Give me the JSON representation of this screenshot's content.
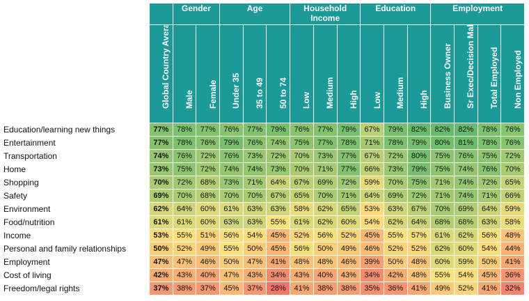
{
  "chart_data": {
    "type": "table",
    "column_groups": [
      {
        "name": "Gender",
        "span": 2
      },
      {
        "name": "Age",
        "span": 3
      },
      {
        "name": "Household Income",
        "span": 3
      },
      {
        "name": "Education",
        "span": 3
      },
      {
        "name": "Employment",
        "span": 4
      }
    ],
    "columns": [
      "Global Country Average",
      "Male",
      "Female",
      "Under 35",
      "35 to 49",
      "50 to 74",
      "Low",
      "Medium",
      "High",
      "Low",
      "Medium",
      "High",
      "Business Owner",
      "Sr Exec/Decision Maker",
      "Total Employed",
      "Non Employed"
    ],
    "rows": [
      {
        "label": "Education/learning new things",
        "values": [
          77,
          78,
          77,
          76,
          77,
          79,
          76,
          77,
          79,
          67,
          79,
          82,
          82,
          82,
          78,
          76
        ]
      },
      {
        "label": "Entertainment",
        "values": [
          77,
          78,
          76,
          79,
          76,
          74,
          75,
          77,
          78,
          71,
          78,
          79,
          80,
          81,
          78,
          76
        ]
      },
      {
        "label": "Transportation",
        "values": [
          74,
          76,
          72,
          76,
          73,
          72,
          70,
          73,
          77,
          67,
          72,
          80,
          75,
          76,
          75,
          72
        ]
      },
      {
        "label": "Home",
        "values": [
          73,
          75,
          72,
          74,
          74,
          73,
          70,
          71,
          77,
          66,
          73,
          79,
          75,
          74,
          76,
          70
        ]
      },
      {
        "label": "Shopping",
        "values": [
          70,
          72,
          68,
          73,
          71,
          64,
          67,
          69,
          72,
          59,
          70,
          75,
          71,
          74,
          72,
          65
        ]
      },
      {
        "label": "Safety",
        "values": [
          69,
          70,
          68,
          70,
          70,
          67,
          65,
          70,
          71,
          64,
          69,
          72,
          71,
          74,
          71,
          66
        ]
      },
      {
        "label": "Environment",
        "values": [
          62,
          64,
          60,
          61,
          63,
          63,
          58,
          62,
          65,
          53,
          63,
          67,
          70,
          69,
          64,
          59
        ]
      },
      {
        "label": "Food/nutrition",
        "values": [
          61,
          61,
          60,
          63,
          63,
          55,
          61,
          62,
          60,
          54,
          62,
          64,
          68,
          68,
          63,
          58
        ]
      },
      {
        "label": "Income",
        "values": [
          53,
          55,
          51,
          56,
          54,
          45,
          52,
          56,
          52,
          45,
          55,
          57,
          61,
          62,
          56,
          48
        ]
      },
      {
        "label": "Personal and family relationships",
        "values": [
          50,
          52,
          49,
          55,
          50,
          45,
          56,
          50,
          49,
          46,
          52,
          52,
          62,
          60,
          54,
          44
        ]
      },
      {
        "label": "Employment",
        "values": [
          47,
          47,
          46,
          50,
          47,
          41,
          48,
          48,
          46,
          39,
          50,
          48,
          60,
          59,
          50,
          41
        ]
      },
      {
        "label": "Cost of living",
        "values": [
          42,
          43,
          40,
          47,
          43,
          34,
          43,
          40,
          43,
          34,
          42,
          48,
          55,
          54,
          45,
          36
        ]
      },
      {
        "label": "Freedom/legal rights",
        "values": [
          37,
          38,
          37,
          45,
          37,
          28,
          41,
          38,
          38,
          35,
          36,
          41,
          49,
          52,
          41,
          32
        ]
      }
    ],
    "value_suffix": "%",
    "color_scale": {
      "min": 28,
      "mid": 55,
      "max": 82,
      "low_color": "#f0736b",
      "mid_color": "#fde17c",
      "high_color": "#66bb6a"
    }
  },
  "colors": {
    "header_bg": "#1b9a99",
    "header_text": "#ffffff"
  }
}
